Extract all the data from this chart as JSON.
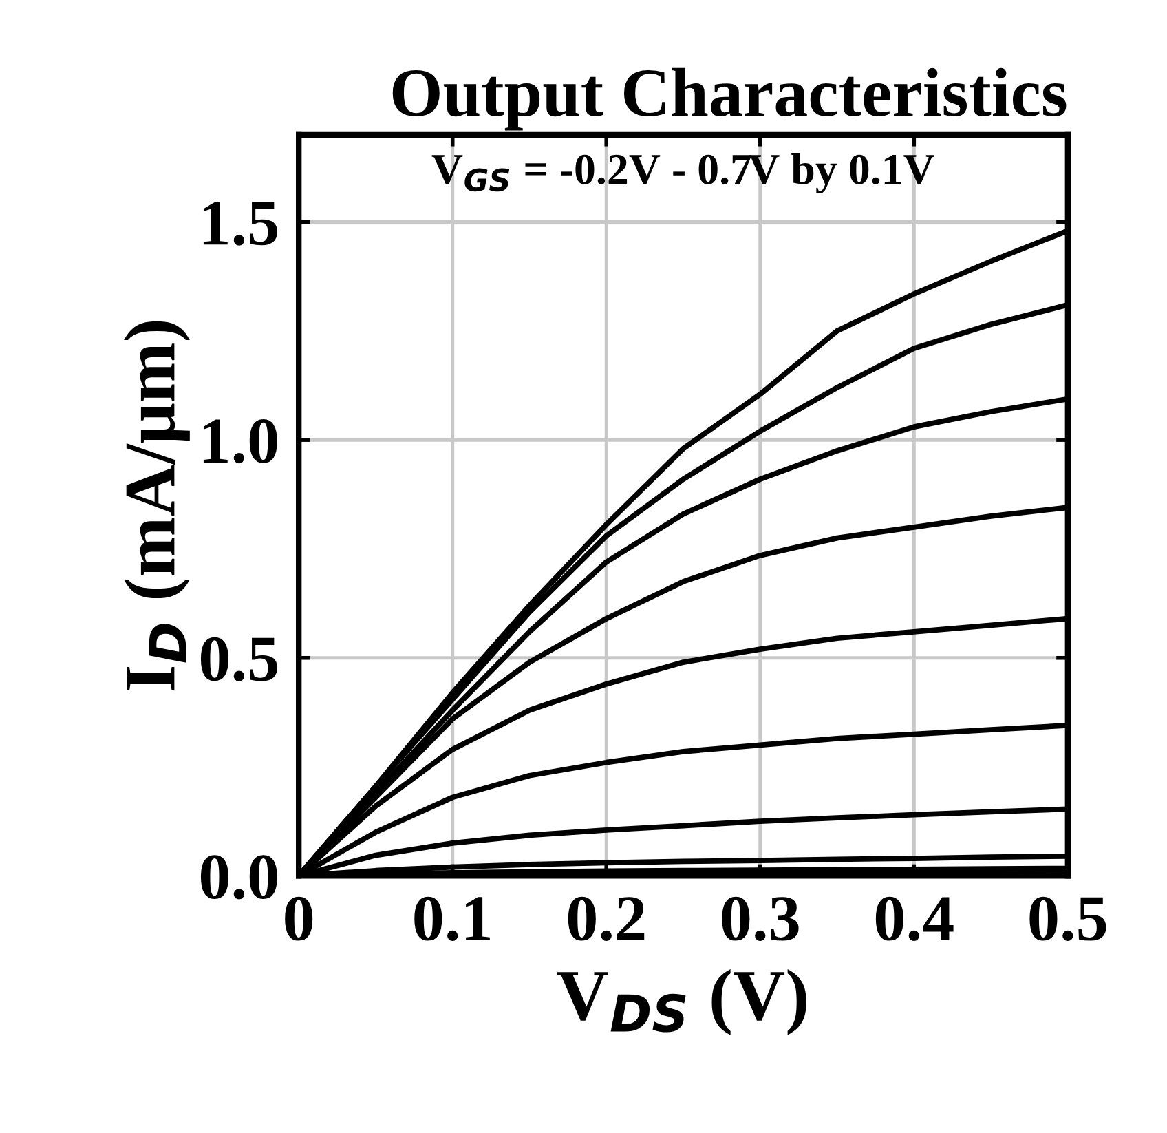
{
  "chart_data": {
    "type": "line",
    "title": "Output Characteristics",
    "xlabel": "V$_{DS}$ (V)",
    "ylabel": "I$_{D}$ (mA/μm)",
    "annotations": [
      "V$_{GS}$ = -0.2V - 0.7V by 0.1V"
    ],
    "x": [
      0,
      0.05,
      0.1,
      0.15,
      0.2,
      0.25,
      0.3,
      0.35,
      0.4,
      0.45,
      0.5
    ],
    "series": [
      {
        "color": "#000000",
        "values": [
          0,
          0.205,
          0.42,
          0.62,
          0.806,
          0.98,
          1.105,
          1.25,
          1.335,
          1.41,
          1.48
        ]
      },
      {
        "color": "#000000",
        "values": [
          0,
          0.205,
          0.405,
          0.605,
          0.78,
          0.91,
          1.02,
          1.12,
          1.21,
          1.265,
          1.31
        ]
      },
      {
        "color": "#000000",
        "values": [
          0,
          0.19,
          0.38,
          0.56,
          0.72,
          0.83,
          0.91,
          0.975,
          1.03,
          1.065,
          1.094
        ]
      },
      {
        "color": "#000000",
        "values": [
          0,
          0.18,
          0.36,
          0.49,
          0.59,
          0.675,
          0.735,
          0.775,
          0.8,
          0.825,
          0.845
        ]
      },
      {
        "color": "#000000",
        "values": [
          0,
          0.16,
          0.29,
          0.38,
          0.44,
          0.49,
          0.52,
          0.545,
          0.56,
          0.575,
          0.59
        ]
      },
      {
        "color": "#000000",
        "values": [
          0,
          0.1,
          0.18,
          0.23,
          0.26,
          0.285,
          0.3,
          0.315,
          0.325,
          0.335,
          0.345
        ]
      },
      {
        "color": "#000000",
        "values": [
          0,
          0.047,
          0.075,
          0.093,
          0.105,
          0.115,
          0.125,
          0.133,
          0.14,
          0.147,
          0.153
        ]
      },
      {
        "color": "#000000",
        "values": [
          0,
          0.012,
          0.02,
          0.026,
          0.03,
          0.033,
          0.035,
          0.038,
          0.04,
          0.043,
          0.045
        ]
      },
      {
        "color": "#000000",
        "values": [
          0,
          0.004,
          0.007,
          0.009,
          0.011,
          0.012,
          0.013,
          0.014,
          0.015,
          0.016,
          0.017
        ]
      },
      {
        "color": "#000000",
        "values": [
          0,
          0.001,
          0.002,
          0.002,
          0.003,
          0.003,
          0.004,
          0.004,
          0.004,
          0.005,
          0.005
        ]
      }
    ],
    "xlim": [
      0,
      0.5
    ],
    "ylim": [
      0,
      1.7
    ],
    "xticks": [
      0,
      0.1,
      0.2,
      0.3,
      0.4,
      0.5
    ],
    "yticks": [
      {
        "value": 0,
        "label": "0.0"
      },
      {
        "value": 0.5,
        "label": "0.5"
      },
      {
        "value": 1.0,
        "label": "1.0"
      },
      {
        "value": 1.5,
        "label": "1.5"
      }
    ],
    "grid": true,
    "marker": "none",
    "line_style": "solid"
  }
}
